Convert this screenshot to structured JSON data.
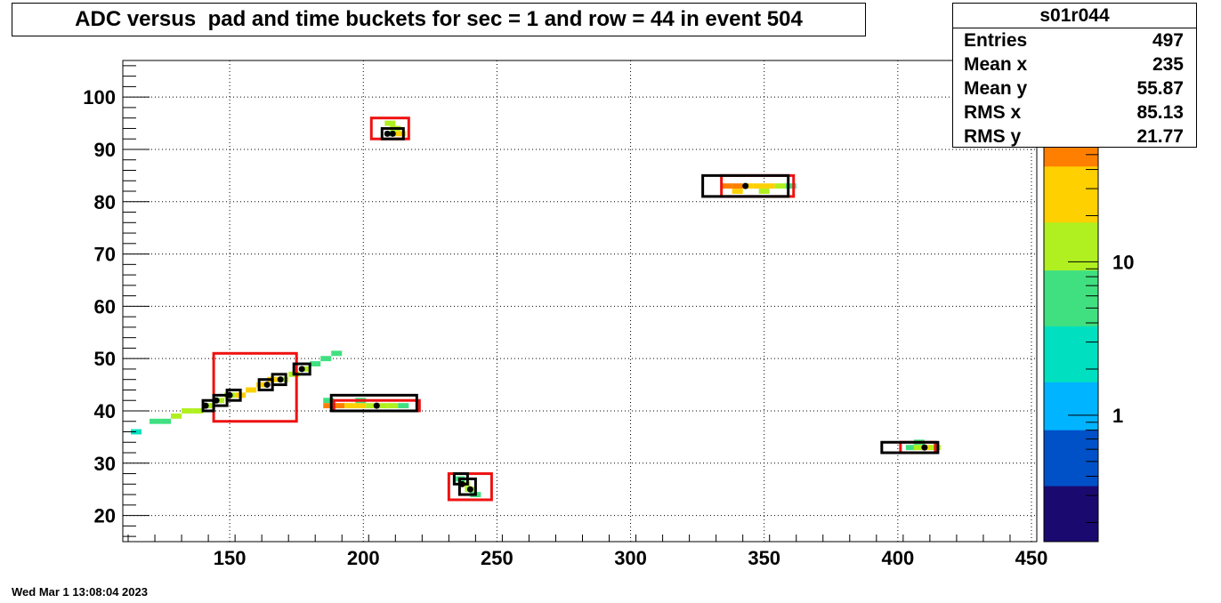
{
  "title": "ADC versus  pad and time buckets for sec = 1 and row = 44 in event 504",
  "stats": {
    "name": "s01r044",
    "rows": [
      {
        "label": "Entries",
        "value": "497"
      },
      {
        "label": "Mean x",
        "value": "235"
      },
      {
        "label": "Mean y",
        "value": "55.87"
      },
      {
        "label": "RMS x",
        "value": "85.13"
      },
      {
        "label": "RMS y",
        "value": "21.77"
      }
    ]
  },
  "date": "Wed Mar  1 13:08:04 2023",
  "chart_data": {
    "type": "heatmap",
    "title": "ADC versus  pad and time buckets for sec = 1 and row = 44 in event 504",
    "xlim": [
      110,
      452
    ],
    "ylim": [
      15,
      107
    ],
    "x_ticks": [
      150,
      200,
      250,
      300,
      350,
      400,
      450
    ],
    "y_ticks": [
      20,
      30,
      40,
      50,
      60,
      70,
      80,
      90,
      100
    ],
    "grid": true,
    "color_scale": {
      "type": "log",
      "min": 0.15,
      "max": 200,
      "ticks": [
        {
          "value": 1,
          "label": "1"
        },
        {
          "value": 10,
          "label": "10"
        }
      ]
    },
    "palette": [
      "#1a0a70",
      "#0050c8",
      "#00b4ff",
      "#00e0c0",
      "#40e080",
      "#b0f020",
      "#ffd000",
      "#ff8000",
      "#ff3000"
    ],
    "cells": [
      [
        115,
        36,
        3
      ],
      [
        122,
        38,
        6
      ],
      [
        126,
        38,
        8
      ],
      [
        130,
        39,
        9
      ],
      [
        134,
        40,
        10
      ],
      [
        138,
        40,
        11
      ],
      [
        142,
        41,
        14
      ],
      [
        146,
        42,
        15
      ],
      [
        150,
        43,
        18
      ],
      [
        154,
        43,
        25
      ],
      [
        158,
        44,
        40
      ],
      [
        162,
        45,
        30
      ],
      [
        166,
        46,
        22
      ],
      [
        170,
        46,
        16
      ],
      [
        174,
        47,
        12
      ],
      [
        178,
        48,
        10
      ],
      [
        182,
        49,
        8
      ],
      [
        186,
        50,
        6
      ],
      [
        190,
        51,
        5
      ],
      [
        210,
        95,
        10
      ],
      [
        212,
        94,
        15
      ],
      [
        214,
        93,
        20
      ],
      [
        210,
        93,
        8
      ],
      [
        187,
        41,
        60
      ],
      [
        191,
        41,
        80
      ],
      [
        195,
        41,
        40
      ],
      [
        199,
        41,
        20
      ],
      [
        203,
        41,
        15
      ],
      [
        207,
        41,
        12
      ],
      [
        211,
        41,
        9
      ],
      [
        215,
        41,
        6
      ],
      [
        187,
        42,
        5
      ],
      [
        199,
        42,
        8
      ],
      [
        336,
        83,
        60
      ],
      [
        340,
        83,
        80
      ],
      [
        344,
        83,
        40
      ],
      [
        348,
        83,
        30
      ],
      [
        352,
        83,
        20
      ],
      [
        356,
        83,
        15
      ],
      [
        360,
        83,
        8
      ],
      [
        340,
        82,
        20
      ],
      [
        350,
        82,
        10
      ],
      [
        236,
        27,
        8
      ],
      [
        238,
        26,
        12
      ],
      [
        240,
        25,
        10
      ],
      [
        242,
        24,
        5
      ],
      [
        405,
        33,
        5
      ],
      [
        408,
        33,
        12
      ],
      [
        411,
        33,
        20
      ],
      [
        414,
        33,
        9
      ],
      [
        408,
        34,
        6
      ]
    ],
    "red_boxes": [
      {
        "x0": 144,
        "x1": 175,
        "y0": 38,
        "y1": 51
      },
      {
        "x0": 203,
        "x1": 217,
        "y0": 92,
        "y1": 96
      },
      {
        "x0": 189,
        "x1": 221,
        "y0": 40,
        "y1": 42
      },
      {
        "x0": 334,
        "x1": 361,
        "y0": 81,
        "y1": 85
      },
      {
        "x0": 232,
        "x1": 248,
        "y0": 23,
        "y1": 28
      },
      {
        "x0": 401,
        "x1": 414,
        "y0": 32,
        "y1": 34
      }
    ],
    "black_boxes": [
      {
        "x0": 140,
        "x1": 144,
        "y0": 40,
        "y1": 42
      },
      {
        "x0": 144,
        "x1": 149,
        "y0": 41,
        "y1": 43
      },
      {
        "x0": 149,
        "x1": 154,
        "y0": 42,
        "y1": 44
      },
      {
        "x0": 161,
        "x1": 166,
        "y0": 44,
        "y1": 46
      },
      {
        "x0": 166,
        "x1": 171,
        "y0": 45,
        "y1": 47
      },
      {
        "x0": 174,
        "x1": 180,
        "y0": 47,
        "y1": 49
      },
      {
        "x0": 207,
        "x1": 215,
        "y0": 92,
        "y1": 94
      },
      {
        "x0": 188,
        "x1": 220,
        "y0": 40,
        "y1": 43
      },
      {
        "x0": 327,
        "x1": 359,
        "y0": 81,
        "y1": 85
      },
      {
        "x0": 234,
        "x1": 239,
        "y0": 26,
        "y1": 28
      },
      {
        "x0": 236,
        "x1": 242,
        "y0": 24,
        "y1": 27
      },
      {
        "x0": 394,
        "x1": 415,
        "y0": 32,
        "y1": 34
      }
    ],
    "markers": [
      [
        141,
        41
      ],
      [
        145,
        42
      ],
      [
        150,
        43
      ],
      [
        164,
        45
      ],
      [
        169,
        46
      ],
      [
        177,
        48
      ],
      [
        209,
        93
      ],
      [
        211,
        93
      ],
      [
        205,
        41
      ],
      [
        343,
        83
      ],
      [
        237,
        26
      ],
      [
        240,
        25
      ],
      [
        410,
        33
      ]
    ]
  }
}
